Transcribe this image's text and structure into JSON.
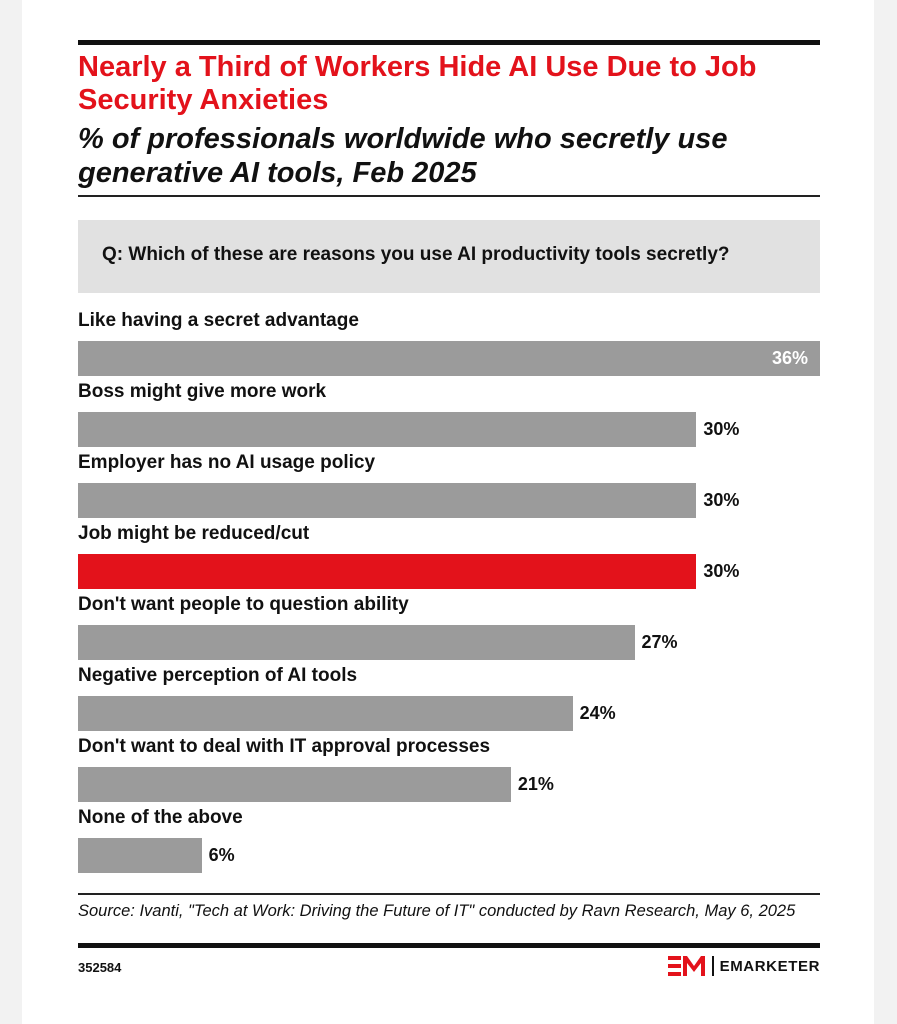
{
  "title": "Nearly a Third of Workers Hide AI Use Due to Job Security Anxieties",
  "subtitle": "% of professionals worldwide who secretly use generative AI tools, Feb 2025",
  "question": "Q: Which of these are reasons you use AI productivity tools secretly?",
  "colors": {
    "bar": "#9b9b9b",
    "highlight": "#e3121b",
    "title": "#e3121b",
    "question_bg": "#e1e1e1"
  },
  "chart_data": {
    "type": "bar",
    "orientation": "horizontal",
    "categories": [
      "Like having a secret advantage",
      "Boss might give more work",
      "Employer has no AI usage policy",
      "Job might be reduced/cut",
      "Don't want people to question ability",
      "Negative perception of AI tools",
      "Don't want to deal with IT approval processes",
      "None of the above"
    ],
    "values": [
      36,
      30,
      30,
      30,
      27,
      24,
      21,
      6
    ],
    "value_labels": [
      "36%",
      "30%",
      "30%",
      "30%",
      "27%",
      "24%",
      "21%",
      "6%"
    ],
    "highlight_index": 3,
    "xlim": [
      0,
      36
    ],
    "grid": false
  },
  "source": "Source: Ivanti, \"Tech at Work: Driving the Future of IT\" conducted by Ravn Research, May 6, 2025",
  "chart_id": "352584",
  "brand": {
    "name": "EMARKETER",
    "logo_icon": "em-logo-icon"
  }
}
